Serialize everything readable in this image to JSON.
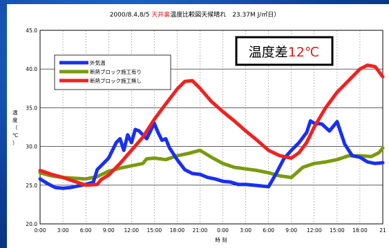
{
  "chart_data": {
    "type": "line",
    "title_parts": [
      {
        "text": "2000/8.4,8/5 ",
        "color": "#000000"
      },
      {
        "text": "天井裏",
        "color": "#e11b1b"
      },
      {
        "text": "温度比較図天候晴れ　23.37M J/㎡日）",
        "color": "#000000"
      }
    ],
    "xlabel": "時 刻",
    "ylabel": "温度（℃）",
    "ylim": [
      20.0,
      45.0
    ],
    "yticks": [
      "45.0",
      "40.0",
      "35.0",
      "30.0",
      "25.0",
      "20.0"
    ],
    "ytick_values": [
      45,
      40,
      35,
      30,
      25,
      20
    ],
    "xlim": [
      0,
      45
    ],
    "xtick_labels": [
      "0:00",
      "3:00",
      "6:00",
      "9:00",
      "12:00",
      "15:00",
      "18:00",
      "21:00",
      "0:00",
      "3:00",
      "6:00",
      "9:00",
      "12:00",
      "15:00",
      "18:00",
      "21"
    ],
    "grid": true,
    "legend_position": "top-left",
    "annotation": {
      "label": "温度差",
      "value": "12℃",
      "value_color": "#e11b1b"
    },
    "series": [
      {
        "name": "外気温",
        "color": "#1a2ff0",
        "x": [
          0,
          1,
          2,
          3,
          4,
          5,
          6,
          7,
          7.5,
          8,
          9,
          10,
          10.5,
          11,
          11.5,
          12,
          12.5,
          13,
          14,
          15,
          15.5,
          16,
          16.5,
          17,
          18,
          19,
          20,
          21,
          22,
          23,
          24,
          25,
          26,
          27,
          28,
          29,
          30,
          31,
          32,
          33,
          34,
          35,
          35.5,
          36,
          37,
          38,
          39,
          40,
          41,
          42,
          43,
          44,
          45
        ],
        "y": [
          25.8,
          25.2,
          24.7,
          24.6,
          24.7,
          24.9,
          25.1,
          25.4,
          27.0,
          27.5,
          28.5,
          30.5,
          31.0,
          29.5,
          31.5,
          30.5,
          32.2,
          32.0,
          31.0,
          33.0,
          31.8,
          30.8,
          31.0,
          29.8,
          28.3,
          27.0,
          26.5,
          26.4,
          26.0,
          25.8,
          25.5,
          25.4,
          25.1,
          25.1,
          25.0,
          24.9,
          24.8,
          26.5,
          28.4,
          29.5,
          30.5,
          31.8,
          33.3,
          33.0,
          32.9,
          32.0,
          33.2,
          30.3,
          28.8,
          28.6,
          28.0,
          27.8,
          27.9
        ]
      },
      {
        "name": "断熱ブロック施工有り",
        "color": "#7a9a0e",
        "x": [
          0,
          1.5,
          3,
          4.5,
          6,
          7.5,
          9,
          10.5,
          12,
          13.5,
          14,
          15,
          16.5,
          18,
          19.5,
          21,
          22.5,
          24,
          25.5,
          27,
          28.5,
          30,
          31.5,
          33,
          34.5,
          36,
          37.5,
          39,
          40.5,
          42,
          43.5,
          44.5,
          45
        ],
        "y": [
          26.6,
          26.2,
          26.0,
          25.9,
          25.8,
          26.1,
          26.8,
          27.2,
          27.5,
          27.8,
          28.4,
          28.5,
          28.3,
          28.8,
          29.1,
          29.5,
          28.6,
          27.8,
          27.3,
          27.1,
          26.9,
          26.6,
          26.2,
          26.0,
          27.3,
          27.8,
          28.0,
          28.3,
          28.8,
          28.8,
          28.7,
          29.2,
          29.8
        ]
      },
      {
        "name": "断熱ブロック施工無し",
        "color": "#ef2222",
        "x": [
          0,
          1.5,
          3,
          4.5,
          6,
          7.5,
          8,
          9,
          10.5,
          12,
          13.5,
          15,
          16.5,
          18,
          19,
          20,
          21,
          22.5,
          24,
          25.5,
          27,
          28.5,
          30,
          31.5,
          33,
          34,
          35,
          36,
          37.5,
          39,
          40.5,
          42,
          43,
          44,
          45
        ],
        "y": [
          26.9,
          26.4,
          26.0,
          25.5,
          25.0,
          25.1,
          25.7,
          26.3,
          27.8,
          29.5,
          31.2,
          33.5,
          35.5,
          37.4,
          38.4,
          38.5,
          37.5,
          35.8,
          34.5,
          33.3,
          32.0,
          30.8,
          29.5,
          28.8,
          28.5,
          29.2,
          30.5,
          32.5,
          35.0,
          37.0,
          38.5,
          40.0,
          40.5,
          40.3,
          39.0
        ]
      }
    ]
  }
}
